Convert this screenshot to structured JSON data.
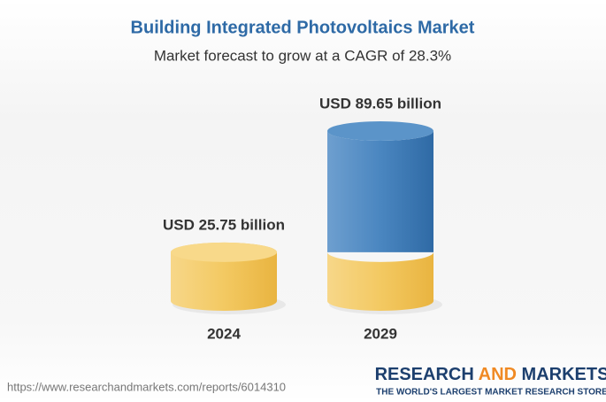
{
  "chart_data": {
    "type": "cylinder",
    "title": "Building Integrated Photovoltaics Market",
    "subtitle": "Market forecast to grow at a CAGR of 28.3%",
    "categories": [
      "2024",
      "2029"
    ],
    "values": [
      25.75,
      89.65
    ],
    "value_labels": [
      "USD 25.75 billion",
      "USD 89.65 billion"
    ],
    "color": "#f2c55c",
    "growth_color": "#4a86c0"
  },
  "source": "https://www.researchandmarkets.com/reports/6014310",
  "logo": {
    "words": [
      "RESEARCH",
      "AND",
      "MARKETS"
    ],
    "tagline": "THE WORLD'S LARGEST MARKET RESEARCH STORE"
  }
}
